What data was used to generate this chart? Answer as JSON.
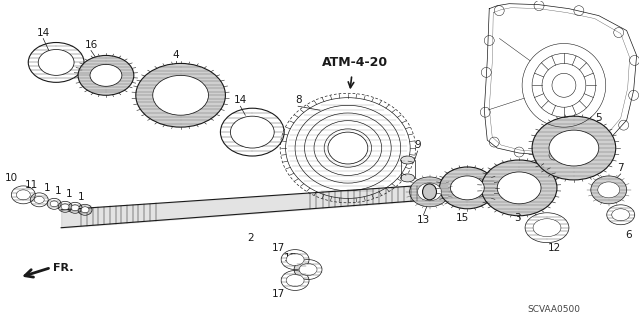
{
  "bg_color": "#ffffff",
  "fig_width": 6.4,
  "fig_height": 3.19,
  "dpi": 100,
  "atm_label": "ATM-4-20",
  "fr_label": "FR.",
  "scvaa_label": "SCVAA0500",
  "ink": "#1a1a1a",
  "gray": "#666666"
}
